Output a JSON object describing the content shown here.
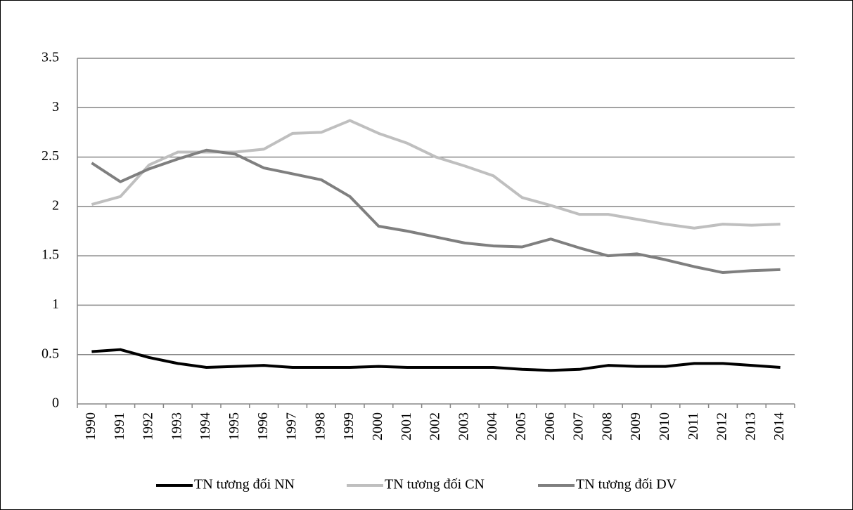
{
  "chart_data": {
    "type": "line",
    "categories": [
      "1990",
      "1991",
      "1992",
      "1993",
      "1994",
      "1995",
      "1996",
      "1997",
      "1998",
      "1999",
      "2000",
      "2001",
      "2002",
      "2003",
      "2004",
      "2005",
      "2006",
      "2007",
      "2008",
      "2009",
      "2010",
      "2011",
      "2012",
      "2013",
      "2014"
    ],
    "series": [
      {
        "name": "TN tương đối NN",
        "color": "#000000",
        "values": [
          0.53,
          0.55,
          0.47,
          0.41,
          0.37,
          0.38,
          0.39,
          0.37,
          0.37,
          0.37,
          0.38,
          0.37,
          0.37,
          0.37,
          0.37,
          0.35,
          0.34,
          0.35,
          0.39,
          0.38,
          0.38,
          0.41,
          0.41,
          0.39,
          0.37
        ]
      },
      {
        "name": "TN tương đối CN",
        "color": "#bfbfbf",
        "values": [
          2.02,
          2.1,
          2.42,
          2.55,
          2.55,
          2.55,
          2.58,
          2.74,
          2.75,
          2.87,
          2.74,
          2.64,
          2.5,
          2.41,
          2.31,
          2.09,
          2.01,
          1.92,
          1.92,
          1.87,
          1.82,
          1.78,
          1.82,
          1.81,
          1.82
        ]
      },
      {
        "name": "TN tương đối DV",
        "color": "#7f7f7f",
        "values": [
          2.44,
          2.25,
          2.38,
          2.48,
          2.57,
          2.53,
          2.39,
          2.33,
          2.27,
          2.1,
          1.8,
          1.75,
          1.69,
          1.63,
          1.6,
          1.59,
          1.67,
          1.58,
          1.5,
          1.52,
          1.46,
          1.39,
          1.33,
          1.35,
          1.36
        ]
      }
    ],
    "ylim": [
      0,
      3.5
    ],
    "yticks": [
      0,
      0.5,
      1,
      1.5,
      2,
      2.5,
      3,
      3.5
    ],
    "grid": true,
    "legend": "bottom"
  }
}
